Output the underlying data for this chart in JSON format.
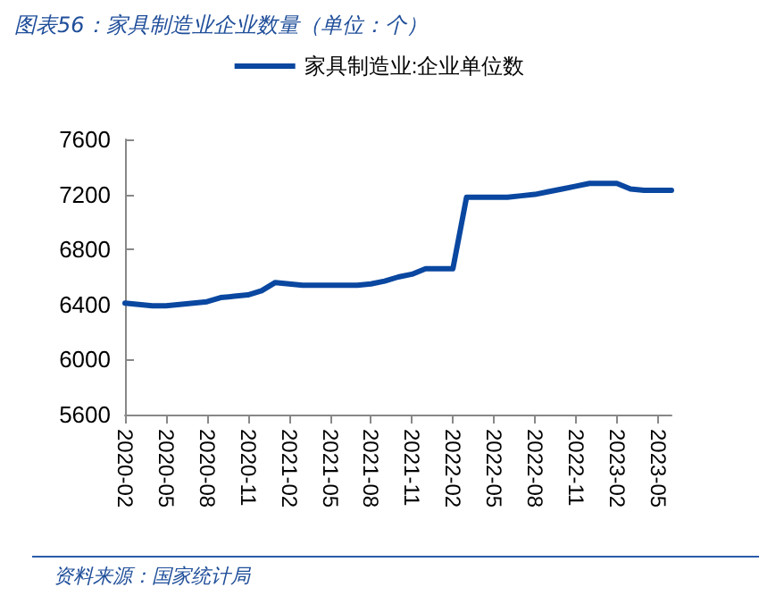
{
  "chart_data": {
    "type": "line",
    "title": "图表56：家具制造业企业数量（单位：个）",
    "annotations": [
      "资料来源：国家统计局"
    ],
    "categories": [
      "2020-02",
      null,
      null,
      "2020-05",
      null,
      null,
      "2020-08",
      null,
      null,
      "2020-11",
      null,
      null,
      "2021-02",
      null,
      null,
      "2021-05",
      null,
      null,
      "2021-08",
      null,
      null,
      "2021-11",
      null,
      null,
      "2022-02",
      null,
      null,
      "2022-05",
      null,
      null,
      "2022-08",
      null,
      null,
      "2022-11",
      null,
      null,
      "2023-02",
      null,
      null,
      "2023-05",
      null
    ],
    "series": [
      {
        "name": "家具制造业:企业单位数",
        "color": "#0a47a0",
        "values": [
          6410,
          6400,
          6390,
          6390,
          6400,
          6410,
          6420,
          6450,
          6460,
          6470,
          6500,
          6560,
          6550,
          6540,
          6540,
          6540,
          6540,
          6540,
          6550,
          6570,
          6600,
          6620,
          6660,
          6660,
          6660,
          7180,
          7180,
          7180,
          7180,
          7190,
          7200,
          7220,
          7240,
          7260,
          7280,
          7280,
          7280,
          7240,
          7230,
          7230,
          7230
        ]
      }
    ],
    "ylim": [
      5600,
      7600
    ],
    "yticks": [
      5600,
      6000,
      6400,
      6800,
      7200,
      7600
    ],
    "grid": false,
    "legend": "top",
    "marker": "none",
    "line_style": "solid"
  }
}
